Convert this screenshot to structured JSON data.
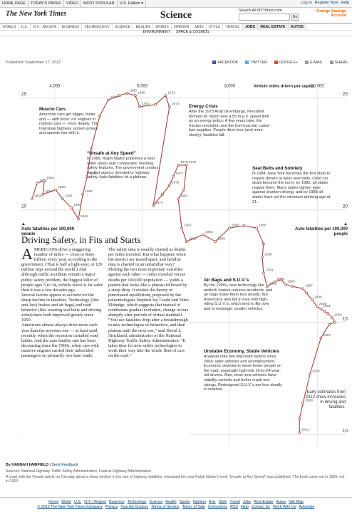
{
  "header": {
    "top_links": [
      "HOME PAGE",
      "TODAY'S PAPER",
      "VIDEO",
      "MOST POPULAR",
      "U.S. Edition ▾"
    ],
    "account_links": [
      "Log In",
      "Register Now",
      "Help"
    ],
    "logo": "The New York Times",
    "section": "Science",
    "search_label": "Search All NYTimes.com",
    "search_button": "Go",
    "ad": "Orange Savings Account",
    "nav": [
      "WORLD",
      "U.S.",
      "N.Y. / REGION",
      "BUSINESS",
      "TECHNOLOGY",
      "SCIENCE",
      "HEALTH",
      "SPORTS",
      "OPINION",
      "ARTS",
      "STYLE",
      "TRAVEL",
      "JOBS",
      "REAL ESTATE",
      "AUTOS"
    ],
    "subnav": [
      "ENVIRONMENT",
      "SPACE & COSMOS"
    ],
    "published": "Published: September 17, 2012",
    "share": [
      "FACEBOOK",
      "TWITTER",
      "GOOGLE+",
      "E-MAIL",
      "SHARE"
    ]
  },
  "chart_data": {
    "type": "line",
    "xlabel": "Vehicle miles driven per capita",
    "ylabel": "Auto fatalities per 100,000 people",
    "color": "#a0463c",
    "xlim": [
      3400,
      10400
    ],
    "xticks": [
      {
        "value": 4000,
        "label": "4,000"
      },
      {
        "value": 6000,
        "label": "6,000"
      },
      {
        "value": 8000,
        "label": "8,000"
      },
      {
        "value": 10000,
        "label": "10,000"
      }
    ],
    "ylim": [
      9.5,
      26.5
    ],
    "yticks": [
      10,
      15,
      20,
      25
    ],
    "grid": true,
    "x": [
      3480,
      3600,
      3760,
      3730,
      4020,
      4180,
      4380,
      4540,
      4640,
      4740,
      4830,
      5030,
      5220,
      5480,
      5650,
      5840,
      5940,
      6300,
      6530,
      6620,
      6250,
      6460,
      6620,
      6710,
      6820,
      7010,
      6950,
      6820,
      6900,
      7010,
      7390,
      7670,
      7990,
      8320,
      8610,
      8770,
      8740,
      8770,
      8850,
      9020,
      9180,
      9260,
      9420,
      9670,
      9750,
      9880,
      9990,
      10080,
      10160,
      10240,
      10340,
      10400,
      10270,
      10080,
      9830,
      9670,
      9590,
      9590
    ],
    "values": [
      20.5,
      21.2,
      21.3,
      20.7,
      20.9,
      20.5,
      20.1,
      19.6,
      20.7,
      21.5,
      22.7,
      24.2,
      24.9,
      25.1,
      25.2,
      25.1,
      24.6,
      24.7,
      25.1,
      24.6,
      20.2,
      20.7,
      21.1,
      21.5,
      22.0,
      22.0,
      20.9,
      20.5,
      19.2,
      18.6,
      18.9,
      18.6,
      19.2,
      19.3,
      19.2,
      18.5,
      17.9,
      17.2,
      16.6,
      16.8,
      16.9,
      16.7,
      16.6,
      16.5,
      16.3,
      16.0,
      15.7,
      15.6,
      15.5,
      15.4,
      15.2,
      15.0,
      14.9,
      14.3,
      12.7,
      11.4,
      10.7,
      10.1
    ],
    "point_labels": [
      "1950",
      "1951",
      "1953",
      "1954",
      "1956",
      "1958",
      "1960",
      "1961",
      "1962",
      "1963",
      null,
      null,
      "1966",
      null,
      "1968",
      "1969",
      "1970",
      null,
      "1972",
      "1973",
      "1974",
      null,
      "1976",
      "1977",
      "1978",
      "1979",
      null,
      "1981",
      "1982",
      "1983",
      "1984",
      "1985",
      "1986",
      null,
      "1988",
      null,
      "1990",
      "1991",
      "1992",
      "1993",
      null,
      "1995",
      null,
      "1997",
      null,
      "1999",
      "2000",
      "2001",
      null,
      null,
      "2004",
      null,
      null,
      "2007",
      "2008",
      "2009",
      null,
      "2011"
    ],
    "annotations": [
      {
        "title": "Muscle Cars",
        "text": "American cars get bigger, faster and — with more V-8 engines in midsize cars — more deadly. The Interstate highway system grows, and speeds rise with it."
      },
      {
        "title": "“Unsafe at Any Speed”",
        "text": "In 1965, Ralph Nader publishes a best seller about auto companies' resisting safety features. The government creates the first agency devoted to highway safety. Auto fatalities hit a plateau."
      },
      {
        "title": "Energy Crisis",
        "text": "After the 1973 Arab oil embargo, President Richard M. Nixon sets a 55 m.p.h. speed limit as an energy policy. A few years later, the Iranian revolution and the Iran-Iraq war curtail fuel supplies. People drive less (and more slowly); fatalities fall."
      },
      {
        "title": "Seat Belts and Sobriety",
        "text": "In 1984, New York becomes the first state to require drivers to wear seat belts. Child car seats become the norm: by 1985, all states require them. Many states tighten laws against drunken driving, and by 1988 all states have set the minimum drinking age at 21."
      },
      {
        "title": "Air Bags and S.U.V.'s",
        "text": "By the 1990s, new technology like antilock brakes reduces accidents, and air bags make them less deadly. But Americans also fall in love with high-riding S.U.V.'s, which tend to flip over and to endanger smaller vehicles."
      },
      {
        "title": "Unstable Economy, Stable Vehicles",
        "text": "Analysts note two important factors since 2004: safer vehicles and unemployment. Economic downturns mean fewer people on the road, especially high-risk 16-to-24-year-old drivers. Also, most new vehicles have stability controls and better crash test ratings. Redesigned S.U.V.'s are less deadly in crashes."
      },
      {
        "text": "Early estimates from 2012 show increases in driving and fatalities."
      }
    ]
  },
  "article": {
    "heading": "Driving Safety, in Fits and Starts",
    "dropcap": "A",
    "paragraphs": [
      "MERICANS drive a staggering number of miles — close to three trillion every year, according to the government. (That is half a light-year, or 120 million trips around the world.) And although traffic accidents remain a major public safety problem, the biggest killer of people ages 5 to 34, vehicle travel is far safer than it was a few decades ago.",
      "Several factors appear to account for the sharp decline in fatalities. Technology (like anti-lock brakes and air bags) and road behavior (like wearing seat belts and driving sober) have both improved greatly since 1950.",
      "Americans almost always drive more each year than the previous one — at least until recently, when the recession curtailed road habits. And the auto fatality rate has been decreasing since the 1960s, when cars with massive engines carried their unbuckled passengers on primarily two-lane roads.",
      "The safety data is usually charted as deaths per miles traveled. But what happens when the metrics are teased apart, and familiar data is charted in an unfamiliar way?",
      "Plotting the two most important variables against each other — miles traveled versus deaths per 100,000 population — yields a pattern that looks like a plateau followed by a steep drop. It evokes the theory of punctuated equilibrium, proposed by the paleontologists Stephen Jay Gould and Niles Eldredge, which suggests that instead of continuous gradual evolution, change occurs abruptly after periods of virtual standstill.",
      "“You see fatalities drop after a breakthrough in new technologies or behaviors, and then plateau until the next one,” said David L. Strickland, administrator of the National Highway Traffic Safety Administration. “It takes time for new safety technologies to work their way into the whole fleet of cars on the road.”"
    ],
    "byline": "By HANNAH FAIRFIELD",
    "feedback": "Send Feedback",
    "sources": "Sources: National Highway Traffic Safety Administration; Federal Highway Administration",
    "note": "A chart with the Visuals article on Tuesday about a sharp decline in the rate of highway fatalities, misstated the year Ralph Nader's book \"Unsafe at Any Speed\" was published. The book came out in 1965, not in 1966."
  },
  "footer": {
    "links": [
      "Home",
      "World",
      "U.S.",
      "N.Y. / Region",
      "Business",
      "Technology",
      "Science",
      "Health",
      "Sports",
      "Opinion",
      "Arts",
      "Style",
      "Travel",
      "Jobs",
      "Real Estate",
      "Autos",
      "Site Map"
    ],
    "legal": [
      "© 2012 The New York Times Company",
      "Privacy",
      "Your Ad Choices",
      "Terms of Service",
      "Terms of Sale",
      "Corrections",
      "RSS",
      "Help",
      "Contact Us",
      "Work With Us",
      "Advertise"
    ]
  }
}
